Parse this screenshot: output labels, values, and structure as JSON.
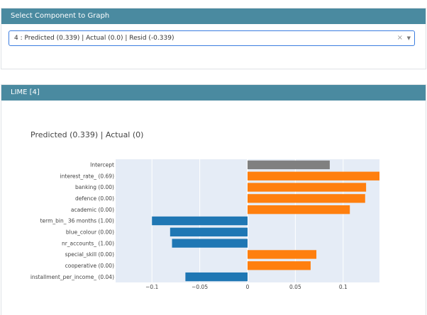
{
  "selector_panel": {
    "title": "Select Component to Graph",
    "selected_value": "4 : Predicted (0.339) | Actual (0.0) | Resid (-0.339)",
    "clear_symbol": "×",
    "arrow_symbol": "▼"
  },
  "lime_panel": {
    "title": "LIME [4]",
    "chart_title": "Predicted (0.339) | Actual (0)"
  },
  "colors": {
    "intercept": "#808080",
    "positive": "#ff7f0e",
    "negative": "#1f77b4",
    "plot_bg": "#e5ecf6",
    "header": "#4a8aa0"
  },
  "chart_data": {
    "type": "bar",
    "orientation": "horizontal",
    "title": "Predicted (0.339) | Actual (0)",
    "categories": [
      "Intercept",
      "interest_rate_ (0.69)",
      "banking (0.00)",
      "defence (0.00)",
      "academic (0.00)",
      "term_bin_ 36 months (1.00)",
      "blue_colour (0.00)",
      "nr_accounts_ (1.00)",
      "special_skill (0.00)",
      "cooperative (0.00)",
      "installment_per_income_ (0.04)"
    ],
    "values": [
      0.086,
      0.138,
      0.124,
      0.123,
      0.107,
      -0.1,
      -0.081,
      -0.079,
      0.072,
      0.066,
      -0.065
    ],
    "bar_types": [
      "intercept",
      "positive",
      "positive",
      "positive",
      "positive",
      "negative",
      "negative",
      "negative",
      "positive",
      "positive",
      "negative"
    ],
    "xlim": [
      -0.138,
      0.138
    ],
    "xticks": [
      -0.1,
      -0.05,
      0,
      0.05,
      0.1
    ],
    "xtick_labels": [
      "−0.1",
      "−0.05",
      "0",
      "0.05",
      "0.1"
    ],
    "grid": true
  }
}
